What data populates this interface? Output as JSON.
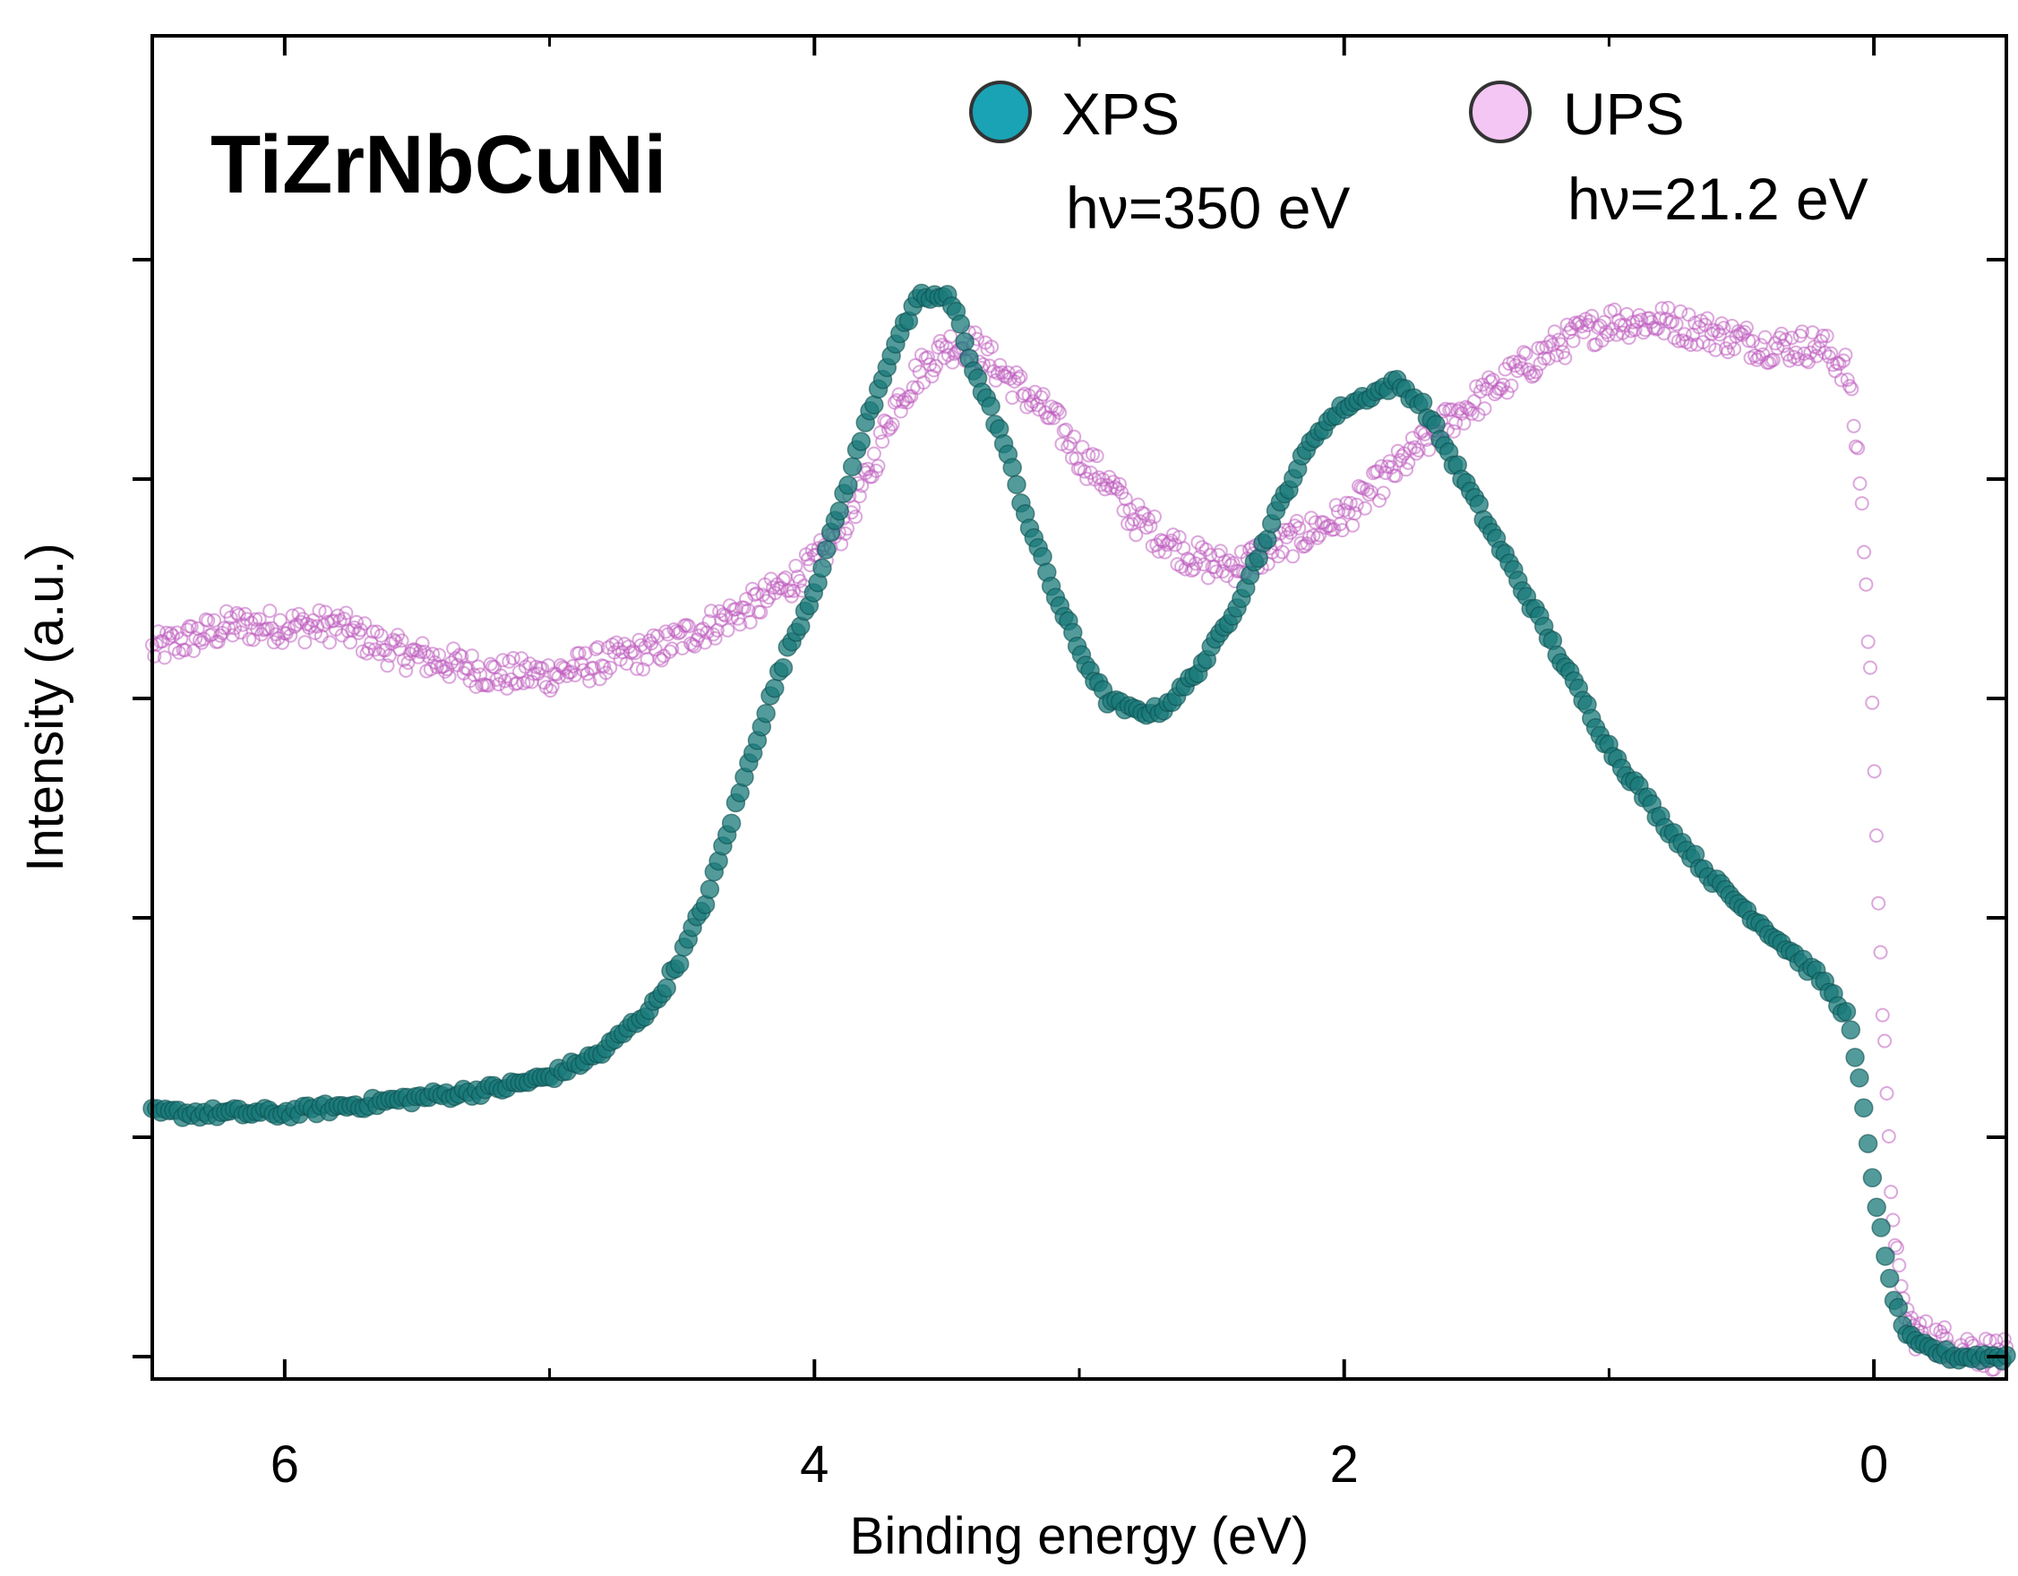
{
  "chart_data": {
    "type": "scatter",
    "title": "TiZrNbCuNi",
    "xlabel": "Binding energy (eV)",
    "ylabel": "Intensity (a.u.)",
    "x_reversed": true,
    "xlim": [
      6.5,
      -0.5
    ],
    "ylim": [
      0,
      1.0
    ],
    "x_ticks_major": [
      6,
      4,
      2,
      0
    ],
    "x_tick_labels": [
      "6",
      "4",
      "2",
      "0"
    ],
    "x_ticks_minor": [
      5,
      3,
      1
    ],
    "y_tick_labels_visible": false,
    "y_ticks": [
      0.0,
      0.25,
      0.5,
      0.75,
      1.0
    ],
    "legend_location": "top-right",
    "series": [
      {
        "name": "XPS",
        "annotation": "hν=350 eV",
        "color": "#1a7a7a",
        "legend_color": "#1aa3b5",
        "marker": "filled-circle",
        "points": [
          [
            6.5,
            0.2
          ],
          [
            6.0,
            0.2
          ],
          [
            5.6,
            0.21
          ],
          [
            5.2,
            0.22
          ],
          [
            5.0,
            0.23
          ],
          [
            4.8,
            0.25
          ],
          [
            4.6,
            0.29
          ],
          [
            4.5,
            0.33
          ],
          [
            4.4,
            0.38
          ],
          [
            4.3,
            0.45
          ],
          [
            4.2,
            0.52
          ],
          [
            4.1,
            0.58
          ],
          [
            4.0,
            0.63
          ],
          [
            3.9,
            0.7
          ],
          [
            3.8,
            0.77
          ],
          [
            3.7,
            0.83
          ],
          [
            3.6,
            0.87
          ],
          [
            3.5,
            0.87
          ],
          [
            3.45,
            0.85
          ],
          [
            3.4,
            0.81
          ],
          [
            3.3,
            0.76
          ],
          [
            3.2,
            0.69
          ],
          [
            3.1,
            0.63
          ],
          [
            3.0,
            0.58
          ],
          [
            2.9,
            0.54
          ],
          [
            2.8,
            0.53
          ],
          [
            2.7,
            0.53
          ],
          [
            2.6,
            0.55
          ],
          [
            2.5,
            0.58
          ],
          [
            2.4,
            0.62
          ],
          [
            2.3,
            0.67
          ],
          [
            2.2,
            0.72
          ],
          [
            2.1,
            0.76
          ],
          [
            2.0,
            0.78
          ],
          [
            1.9,
            0.79
          ],
          [
            1.8,
            0.8
          ],
          [
            1.7,
            0.78
          ],
          [
            1.6,
            0.74
          ],
          [
            1.5,
            0.7
          ],
          [
            1.4,
            0.66
          ],
          [
            1.2,
            0.58
          ],
          [
            1.0,
            0.5
          ],
          [
            0.8,
            0.44
          ],
          [
            0.6,
            0.39
          ],
          [
            0.4,
            0.35
          ],
          [
            0.2,
            0.31
          ],
          [
            0.1,
            0.28
          ],
          [
            0.05,
            0.22
          ],
          [
            0.0,
            0.14
          ],
          [
            -0.05,
            0.07
          ],
          [
            -0.1,
            0.03
          ],
          [
            -0.15,
            0.01
          ],
          [
            -0.3,
            0.0
          ],
          [
            -0.5,
            0.0
          ]
        ]
      },
      {
        "name": "UPS",
        "annotation": "hν=21.2 eV",
        "color": "#bf5fbf",
        "legend_color": "#f4c6f4",
        "marker": "open-circle",
        "points": [
          [
            6.5,
            0.58
          ],
          [
            6.2,
            0.6
          ],
          [
            6.0,
            0.6
          ],
          [
            5.8,
            0.6
          ],
          [
            5.6,
            0.58
          ],
          [
            5.4,
            0.57
          ],
          [
            5.2,
            0.56
          ],
          [
            5.0,
            0.56
          ],
          [
            4.8,
            0.57
          ],
          [
            4.6,
            0.58
          ],
          [
            4.4,
            0.6
          ],
          [
            4.2,
            0.62
          ],
          [
            4.0,
            0.65
          ],
          [
            3.9,
            0.68
          ],
          [
            3.8,
            0.72
          ],
          [
            3.7,
            0.78
          ],
          [
            3.6,
            0.81
          ],
          [
            3.5,
            0.83
          ],
          [
            3.4,
            0.83
          ],
          [
            3.3,
            0.81
          ],
          [
            3.2,
            0.79
          ],
          [
            3.1,
            0.77
          ],
          [
            3.0,
            0.74
          ],
          [
            2.9,
            0.72
          ],
          [
            2.8,
            0.69
          ],
          [
            2.6,
            0.66
          ],
          [
            2.5,
            0.65
          ],
          [
            2.4,
            0.65
          ],
          [
            2.3,
            0.66
          ],
          [
            2.2,
            0.67
          ],
          [
            2.0,
            0.69
          ],
          [
            1.8,
            0.73
          ],
          [
            1.6,
            0.77
          ],
          [
            1.4,
            0.8
          ],
          [
            1.2,
            0.83
          ],
          [
            1.0,
            0.85
          ],
          [
            0.8,
            0.85
          ],
          [
            0.6,
            0.84
          ],
          [
            0.4,
            0.83
          ],
          [
            0.2,
            0.83
          ],
          [
            0.1,
            0.81
          ],
          [
            0.05,
            0.72
          ],
          [
            0.0,
            0.5
          ],
          [
            -0.03,
            0.3
          ],
          [
            -0.06,
            0.15
          ],
          [
            -0.1,
            0.05
          ],
          [
            -0.15,
            0.02
          ],
          [
            -0.3,
            0.01
          ],
          [
            -0.5,
            0.0
          ]
        ]
      }
    ]
  }
}
